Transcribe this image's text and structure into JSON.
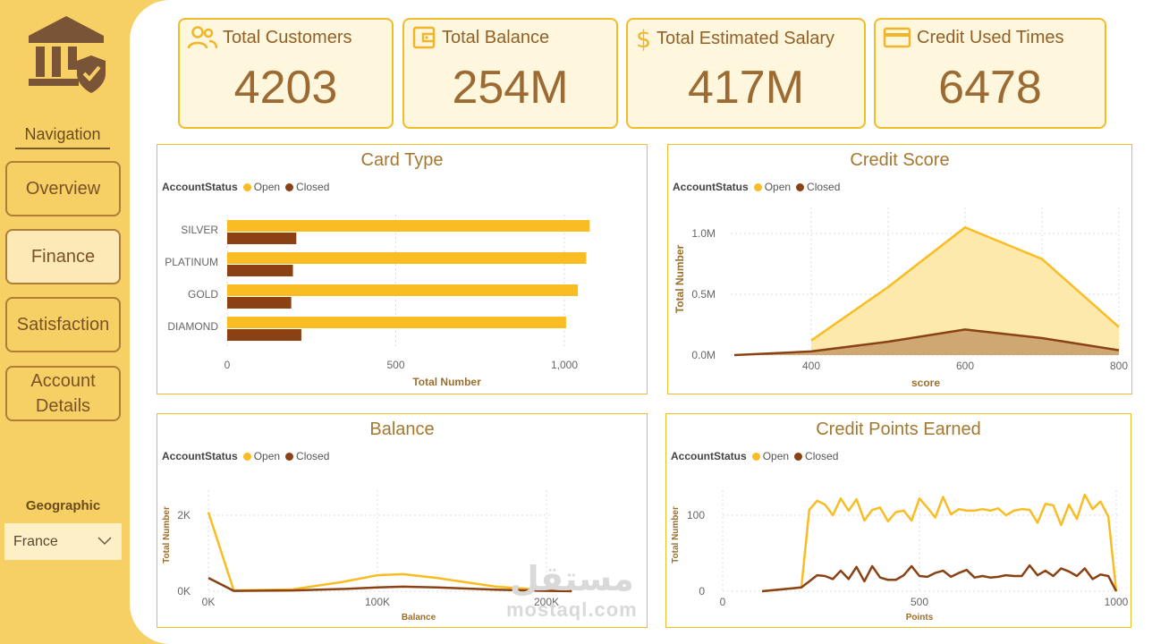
{
  "sidebar": {
    "logo_icon": "bank-shield-icon",
    "nav_title": "Navigation",
    "items": [
      {
        "label": "Overview",
        "active": false
      },
      {
        "label": "Finance",
        "active": true
      },
      {
        "label": "Satisfaction",
        "active": false
      },
      {
        "label": "Account Details",
        "active": false
      }
    ],
    "geo_title": "Geographic",
    "geo_value": "France"
  },
  "kpis": [
    {
      "label": "Total Customers",
      "value": "4203",
      "icon": "users-icon"
    },
    {
      "label": "Total Balance",
      "value": "254M",
      "icon": "wallet-icon"
    },
    {
      "label": "Total Estimated Salary",
      "value": "417M",
      "icon": "dollar-icon"
    },
    {
      "label": "Credit Used Times",
      "value": "6478",
      "icon": "credit-card-icon"
    }
  ],
  "legend": {
    "title": "AccountStatus",
    "open": "Open",
    "closed": "Closed"
  },
  "colors": {
    "open": "#f9bd23",
    "closed": "#8a4114",
    "axis_text": "#666666",
    "label_text": "#9c6f2c"
  },
  "watermark": {
    "arabic": "مستقل",
    "latin": "mostaql.com"
  },
  "chart_data": [
    {
      "type": "bar",
      "title": "Card Type",
      "xlabel": "Total Number",
      "categories": [
        "SILVER",
        "PLATINUM",
        "GOLD",
        "DIAMOND"
      ],
      "series": [
        {
          "name": "Open",
          "values": [
            1075,
            1065,
            1040,
            1005
          ]
        },
        {
          "name": "Closed",
          "values": [
            205,
            195,
            190,
            220
          ]
        }
      ],
      "xticks": [
        "0",
        "500",
        "1,000"
      ],
      "xlim": [
        0,
        1150
      ]
    },
    {
      "type": "area",
      "title": "Credit Score",
      "xlabel": "score",
      "ylabel": "Total Number",
      "yticks": [
        "0.0M",
        "0.5M",
        "1.0M"
      ],
      "xticks": [
        "400",
        "600",
        "800"
      ],
      "series": [
        {
          "name": "Open",
          "x": [
            400,
            500,
            600,
            700,
            800
          ],
          "y": [
            120000,
            560000,
            1050000,
            790000,
            230000
          ]
        },
        {
          "name": "Closed",
          "x": [
            300,
            400,
            500,
            600,
            700,
            800
          ],
          "y": [
            0,
            30000,
            110000,
            210000,
            140000,
            40000
          ]
        }
      ],
      "xlim": [
        270,
        800
      ],
      "ylim": [
        0,
        1250000
      ]
    },
    {
      "type": "line",
      "title": "Balance",
      "xlabel": "Balance",
      "ylabel": "Total Number",
      "yticks": [
        "0K",
        "2K"
      ],
      "xticks": [
        "0K",
        "100K",
        "200K"
      ],
      "series": [
        {
          "name": "Open",
          "x": [
            0,
            15000,
            50000,
            80000,
            100000,
            115000,
            135000,
            170000,
            200000,
            215000
          ],
          "y": [
            2080,
            20,
            50,
            250,
            420,
            450,
            350,
            120,
            30,
            5
          ]
        },
        {
          "name": "Closed",
          "x": [
            0,
            15000,
            50000,
            80000,
            100000,
            115000,
            135000,
            170000,
            200000,
            215000
          ],
          "y": [
            350,
            10,
            20,
            60,
            100,
            120,
            100,
            40,
            10,
            2
          ]
        }
      ],
      "xlim": [
        0,
        215000
      ],
      "ylim": [
        0,
        2250
      ]
    },
    {
      "type": "line",
      "title": "Credit Points Earned",
      "xlabel": "Points",
      "ylabel": "Total Number",
      "yticks": [
        "0",
        "100"
      ],
      "xticks": [
        "0",
        "500",
        "1000"
      ],
      "series": [
        {
          "name": "Open",
          "x": [
            100,
            200,
            220,
            240,
            260,
            280,
            300,
            320,
            340,
            360,
            380,
            400,
            420,
            440,
            460,
            480,
            500,
            520,
            540,
            560,
            580,
            600,
            620,
            640,
            660,
            680,
            700,
            720,
            740,
            760,
            780,
            800,
            820,
            840,
            860,
            880,
            900,
            920,
            940,
            960,
            980,
            1000
          ],
          "y": [
            0,
            5,
            107,
            119,
            114,
            100,
            122,
            106,
            121,
            93,
            107,
            110,
            92,
            104,
            106,
            93,
            122,
            110,
            97,
            124,
            101,
            108,
            106,
            106,
            108,
            106,
            109,
            100,
            106,
            108,
            107,
            90,
            115,
            113,
            87,
            114,
            95,
            127,
            108,
            118,
            98,
            0
          ],
          "step": 20
        },
        {
          "name": "Closed",
          "x": [
            100,
            200,
            220,
            240,
            260,
            280,
            300,
            320,
            340,
            360,
            380,
            400,
            420,
            440,
            460,
            480,
            500,
            520,
            540,
            560,
            580,
            600,
            620,
            640,
            660,
            680,
            700,
            720,
            740,
            760,
            780,
            800,
            820,
            840,
            860,
            880,
            900,
            920,
            940,
            960,
            980,
            1000
          ],
          "y": [
            0,
            5,
            13,
            21,
            20,
            16,
            27,
            16,
            32,
            13,
            33,
            18,
            15,
            15,
            21,
            33,
            20,
            19,
            24,
            27,
            19,
            24,
            28,
            18,
            20,
            18,
            19,
            21,
            20,
            20,
            34,
            21,
            27,
            20,
            30,
            26,
            20,
            30,
            16,
            22,
            20,
            0
          ],
          "step": 20
        }
      ],
      "xlim": [
        0,
        1000
      ],
      "ylim": [
        0,
        145
      ]
    }
  ]
}
